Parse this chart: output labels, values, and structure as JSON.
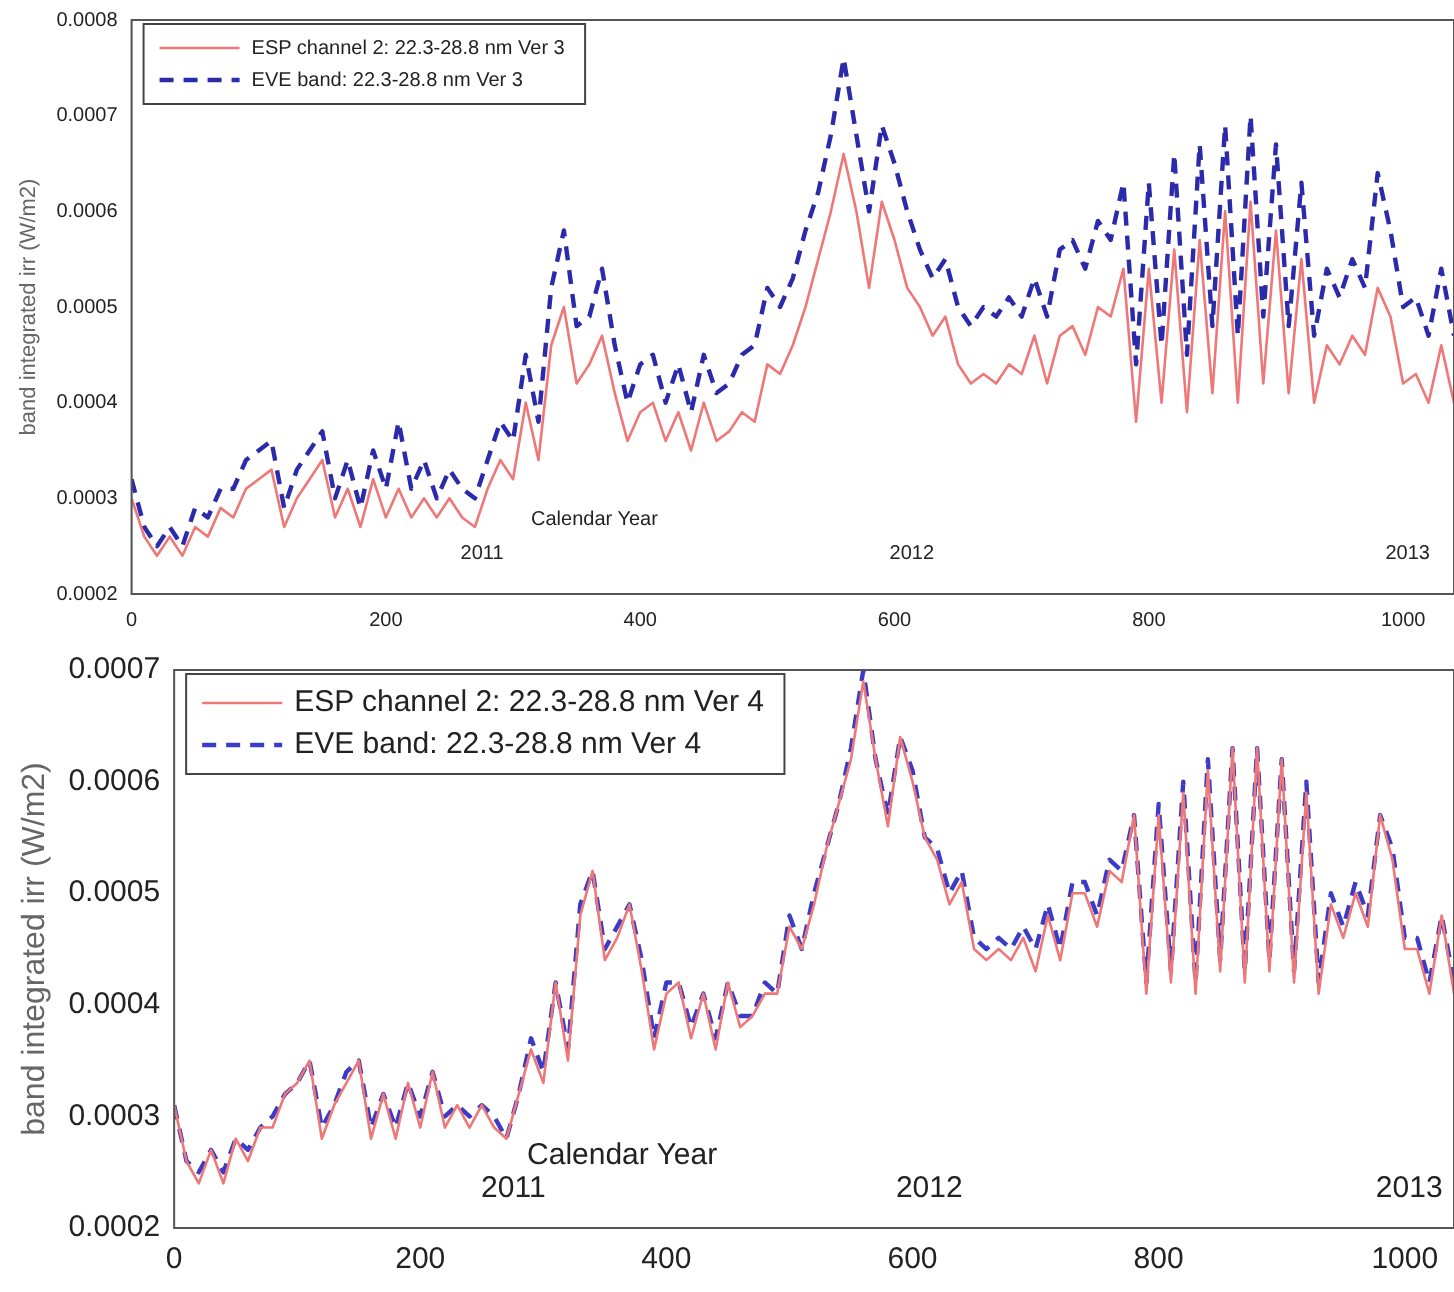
{
  "chart_data": [
    {
      "type": "line",
      "ylabel": "band integrated irr (W/m2)",
      "xlim": [
        0,
        1040
      ],
      "xticks": [
        0,
        200,
        400,
        600,
        800,
        1000
      ],
      "ylim": [
        0.0002,
        0.0008
      ],
      "yticks": [
        0.0002,
        0.0003,
        0.0004,
        0.0005,
        0.0006,
        0.0007,
        0.0008
      ],
      "legend": "top left",
      "grid": false,
      "marker": "none",
      "x": [
        0,
        10,
        20,
        30,
        40,
        50,
        60,
        70,
        80,
        90,
        100,
        110,
        120,
        130,
        140,
        150,
        160,
        170,
        180,
        190,
        200,
        210,
        220,
        230,
        240,
        250,
        260,
        270,
        280,
        290,
        300,
        310,
        320,
        330,
        340,
        350,
        360,
        370,
        380,
        390,
        400,
        410,
        420,
        430,
        440,
        450,
        460,
        470,
        480,
        490,
        500,
        510,
        520,
        530,
        540,
        550,
        560,
        570,
        580,
        590,
        600,
        610,
        620,
        630,
        640,
        650,
        660,
        670,
        680,
        690,
        700,
        710,
        720,
        730,
        740,
        750,
        760,
        770,
        780,
        790,
        800,
        810,
        820,
        830,
        840,
        850,
        860,
        870,
        880,
        890,
        900,
        910,
        920,
        930,
        940,
        950,
        960,
        970,
        980,
        990,
        1000,
        1010,
        1020,
        1030,
        1040
      ],
      "annotations": [
        "2011",
        "Calendar Year",
        "2012",
        "2013"
      ],
      "series": [
        {
          "name": "ESP channel 2: 22.3-28.8 nm Ver 3",
          "color": "#ee7777",
          "line_style": "solid",
          "values": [
            0.0003,
            0.00026,
            0.00024,
            0.00026,
            0.00024,
            0.00027,
            0.00026,
            0.00029,
            0.00028,
            0.00031,
            0.00032,
            0.00033,
            0.00027,
            0.0003,
            0.00032,
            0.00034,
            0.00028,
            0.00031,
            0.00027,
            0.00032,
            0.00028,
            0.00031,
            0.00028,
            0.0003,
            0.00028,
            0.0003,
            0.00028,
            0.00027,
            0.00031,
            0.00034,
            0.00032,
            0.0004,
            0.00034,
            0.00046,
            0.0005,
            0.00042,
            0.00044,
            0.00047,
            0.00041,
            0.00036,
            0.00039,
            0.0004,
            0.00036,
            0.00039,
            0.00035,
            0.0004,
            0.00036,
            0.00037,
            0.00039,
            0.00038,
            0.00044,
            0.00043,
            0.00046,
            0.0005,
            0.00055,
            0.0006,
            0.00066,
            0.0006,
            0.00052,
            0.00061,
            0.00057,
            0.00052,
            0.0005,
            0.00047,
            0.00049,
            0.00044,
            0.00042,
            0.00043,
            0.00042,
            0.00044,
            0.00043,
            0.00047,
            0.00042,
            0.00047,
            0.00048,
            0.00045,
            0.0005,
            0.00049,
            0.00054,
            0.00038,
            0.00054,
            0.0004,
            0.00056,
            0.00039,
            0.00057,
            0.00041,
            0.0006,
            0.0004,
            0.00061,
            0.00042,
            0.00058,
            0.00041,
            0.00055,
            0.0004,
            0.00046,
            0.00044,
            0.00047,
            0.00045,
            0.00052,
            0.00049,
            0.00042,
            0.00043,
            0.0004,
            0.00046,
            0.0004
          ]
        },
        {
          "name": "EVE band: 22.3-28.8 nm Ver 3",
          "color": "#2a2aaa",
          "line_style": "dashed",
          "values": [
            0.00032,
            0.00027,
            0.00025,
            0.00027,
            0.00025,
            0.00029,
            0.00028,
            0.00031,
            0.00031,
            0.00034,
            0.00035,
            0.00036,
            0.00029,
            0.00033,
            0.00035,
            0.00037,
            0.0003,
            0.00034,
            0.00029,
            0.00035,
            0.00031,
            0.00038,
            0.00031,
            0.00034,
            0.0003,
            0.00033,
            0.00031,
            0.0003,
            0.00034,
            0.00038,
            0.00036,
            0.00045,
            0.00038,
            0.00052,
            0.00058,
            0.00048,
            0.00049,
            0.00054,
            0.00046,
            0.0004,
            0.00044,
            0.00045,
            0.0004,
            0.00044,
            0.00039,
            0.00045,
            0.00041,
            0.00042,
            0.00045,
            0.00046,
            0.00052,
            0.0005,
            0.00053,
            0.00058,
            0.00062,
            0.00068,
            0.00076,
            0.00068,
            0.0006,
            0.00069,
            0.00065,
            0.0006,
            0.00056,
            0.00053,
            0.00055,
            0.0005,
            0.00048,
            0.0005,
            0.00049,
            0.00051,
            0.00049,
            0.00053,
            0.00049,
            0.00056,
            0.00057,
            0.00054,
            0.00059,
            0.00057,
            0.00063,
            0.00044,
            0.00063,
            0.00046,
            0.00066,
            0.00045,
            0.00067,
            0.00048,
            0.00069,
            0.00047,
            0.0007,
            0.00049,
            0.00067,
            0.00048,
            0.00063,
            0.00047,
            0.00054,
            0.00051,
            0.00055,
            0.00052,
            0.00064,
            0.00058,
            0.0005,
            0.00051,
            0.00047,
            0.00054,
            0.00047
          ]
        }
      ]
    },
    {
      "type": "line",
      "ylabel": "band integrated irr (W/m2)",
      "xlim": [
        0,
        1040
      ],
      "xticks": [
        0,
        200,
        400,
        600,
        800,
        1000
      ],
      "ylim": [
        0.0002,
        0.0007
      ],
      "yticks": [
        0.0002,
        0.0003,
        0.0004,
        0.0005,
        0.0006,
        0.0007
      ],
      "legend": "top left",
      "grid": false,
      "marker": "none",
      "x": [
        0,
        10,
        20,
        30,
        40,
        50,
        60,
        70,
        80,
        90,
        100,
        110,
        120,
        130,
        140,
        150,
        160,
        170,
        180,
        190,
        200,
        210,
        220,
        230,
        240,
        250,
        260,
        270,
        280,
        290,
        300,
        310,
        320,
        330,
        340,
        350,
        360,
        370,
        380,
        390,
        400,
        410,
        420,
        430,
        440,
        450,
        460,
        470,
        480,
        490,
        500,
        510,
        520,
        530,
        540,
        550,
        560,
        570,
        580,
        590,
        600,
        610,
        620,
        630,
        640,
        650,
        660,
        670,
        680,
        690,
        700,
        710,
        720,
        730,
        740,
        750,
        760,
        770,
        780,
        790,
        800,
        810,
        820,
        830,
        840,
        850,
        860,
        870,
        880,
        890,
        900,
        910,
        920,
        930,
        940,
        950,
        960,
        970,
        980,
        990,
        1000,
        1010,
        1020,
        1030,
        1040
      ],
      "annotations": [
        "2011",
        "Calendar Year",
        "2012",
        "2013"
      ],
      "series": [
        {
          "name": "ESP channel 2: 22.3-28.8 nm Ver 4",
          "color": "#ee7777",
          "line_style": "solid",
          "values": [
            0.00031,
            0.00026,
            0.00024,
            0.00027,
            0.00024,
            0.00028,
            0.00026,
            0.00029,
            0.00029,
            0.00032,
            0.00033,
            0.00035,
            0.00028,
            0.00031,
            0.00033,
            0.00035,
            0.00028,
            0.00032,
            0.00028,
            0.00033,
            0.00029,
            0.00034,
            0.00029,
            0.00031,
            0.00029,
            0.00031,
            0.00029,
            0.00028,
            0.00032,
            0.00036,
            0.00033,
            0.00042,
            0.00035,
            0.00048,
            0.00052,
            0.00044,
            0.00046,
            0.00049,
            0.00043,
            0.00036,
            0.00041,
            0.00042,
            0.00037,
            0.00041,
            0.00036,
            0.00042,
            0.00038,
            0.00039,
            0.00041,
            0.00041,
            0.00047,
            0.00045,
            0.00049,
            0.00054,
            0.00058,
            0.00062,
            0.00069,
            0.00062,
            0.00056,
            0.00064,
            0.0006,
            0.00055,
            0.00053,
            0.00049,
            0.00051,
            0.00045,
            0.00044,
            0.00045,
            0.00044,
            0.00046,
            0.00043,
            0.00048,
            0.00044,
            0.0005,
            0.0005,
            0.00047,
            0.00052,
            0.00051,
            0.00057,
            0.00041,
            0.00057,
            0.00042,
            0.00059,
            0.00041,
            0.00061,
            0.00043,
            0.00063,
            0.00042,
            0.00063,
            0.00043,
            0.00062,
            0.00042,
            0.00059,
            0.00041,
            0.00049,
            0.00046,
            0.0005,
            0.00047,
            0.00057,
            0.00053,
            0.00045,
            0.00045,
            0.00041,
            0.00048,
            0.00041
          ]
        },
        {
          "name": "EVE band: 22.3-28.8 nm Ver 4",
          "color": "#3b3bc8",
          "line_style": "dashed",
          "values": [
            0.00031,
            0.00026,
            0.00025,
            0.00027,
            0.00025,
            0.00028,
            0.00027,
            0.00029,
            0.0003,
            0.00032,
            0.00033,
            0.00035,
            0.00029,
            0.00031,
            0.00034,
            0.00035,
            0.00029,
            0.00032,
            0.00029,
            0.00033,
            0.0003,
            0.00034,
            0.0003,
            0.00031,
            0.0003,
            0.00031,
            0.0003,
            0.00028,
            0.00032,
            0.00037,
            0.00034,
            0.00042,
            0.00036,
            0.00049,
            0.00052,
            0.00045,
            0.00047,
            0.00049,
            0.00044,
            0.00037,
            0.00042,
            0.00042,
            0.00038,
            0.00041,
            0.00037,
            0.00042,
            0.00039,
            0.00039,
            0.00042,
            0.00041,
            0.00048,
            0.00045,
            0.0005,
            0.00054,
            0.00058,
            0.00063,
            0.0007,
            0.00062,
            0.00057,
            0.00064,
            0.00061,
            0.00055,
            0.00054,
            0.0005,
            0.00052,
            0.00046,
            0.00045,
            0.00046,
            0.00045,
            0.00047,
            0.00045,
            0.00049,
            0.00045,
            0.00051,
            0.00051,
            0.00048,
            0.00053,
            0.00052,
            0.00057,
            0.00042,
            0.00058,
            0.00043,
            0.0006,
            0.00042,
            0.00062,
            0.00044,
            0.00063,
            0.00043,
            0.00063,
            0.00044,
            0.00062,
            0.00043,
            0.0006,
            0.00042,
            0.0005,
            0.00047,
            0.00051,
            0.00048,
            0.00057,
            0.00054,
            0.00046,
            0.00046,
            0.00042,
            0.00048,
            0.00042
          ]
        }
      ]
    }
  ]
}
